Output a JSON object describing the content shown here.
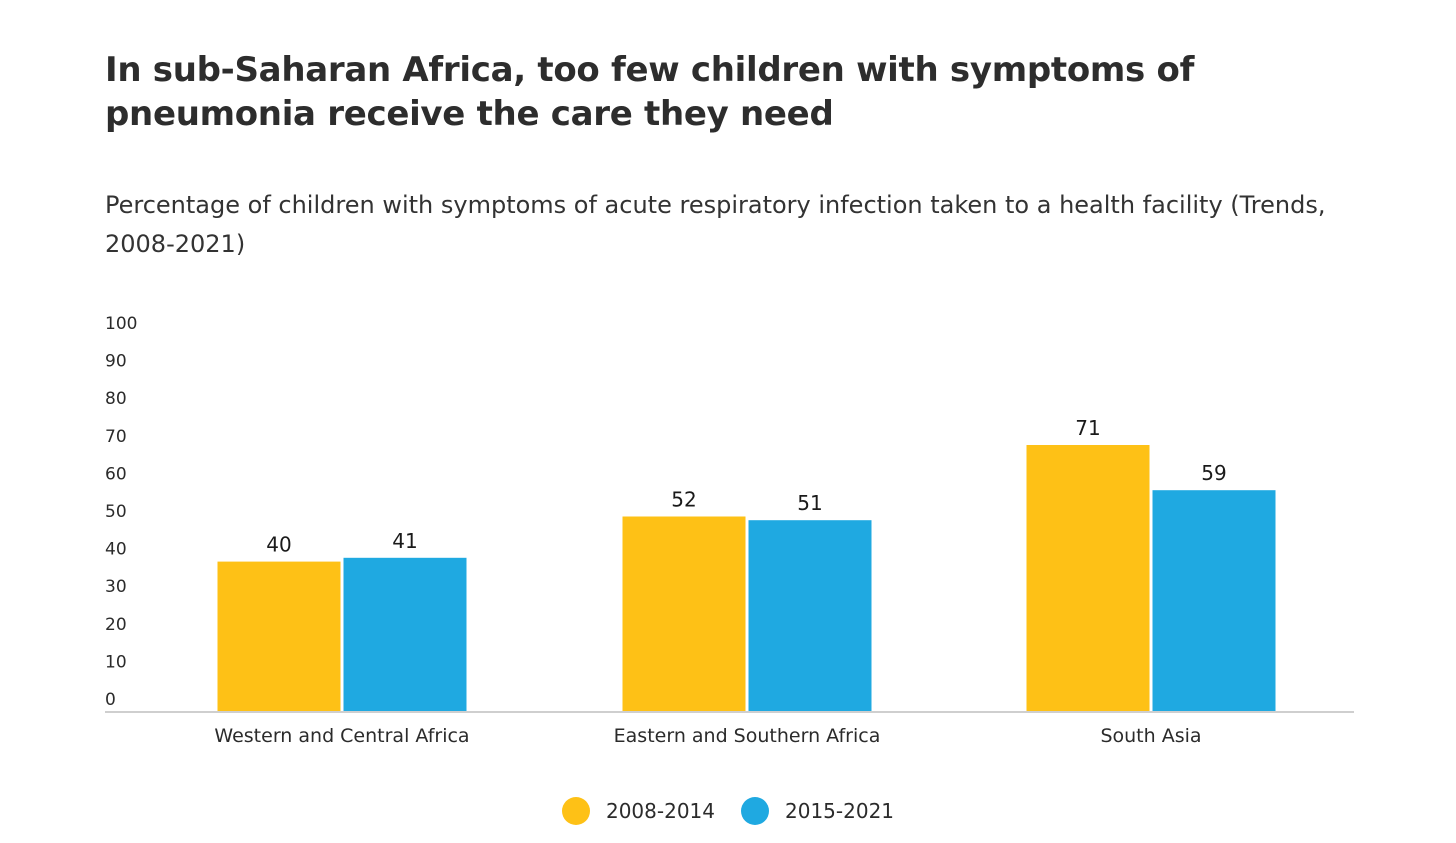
{
  "chart_data": {
    "type": "bar",
    "title": "In sub-Saharan Africa, too few children with symptoms of pneumonia receive the care they need",
    "subtitle": "Percentage of children with symptoms of acute respiratory infection taken to a health facility (Trends, 2008-2021)",
    "categories": [
      "Western and Central Africa",
      "Eastern and Southern Africa",
      "South Asia"
    ],
    "series": [
      {
        "name": "2008-2014",
        "color": "#FEC116",
        "values": [
          40,
          52,
          71
        ]
      },
      {
        "name": "2015-2021",
        "color": "#1FA9E1",
        "values": [
          41,
          51,
          59
        ]
      }
    ],
    "ylim": [
      0,
      100
    ],
    "yticks": [
      0,
      10,
      20,
      30,
      40,
      50,
      60,
      70,
      80,
      90,
      100
    ],
    "xlabel": "",
    "ylabel": "",
    "grid": false,
    "legend_position": "bottom-center",
    "data_labels": true
  }
}
